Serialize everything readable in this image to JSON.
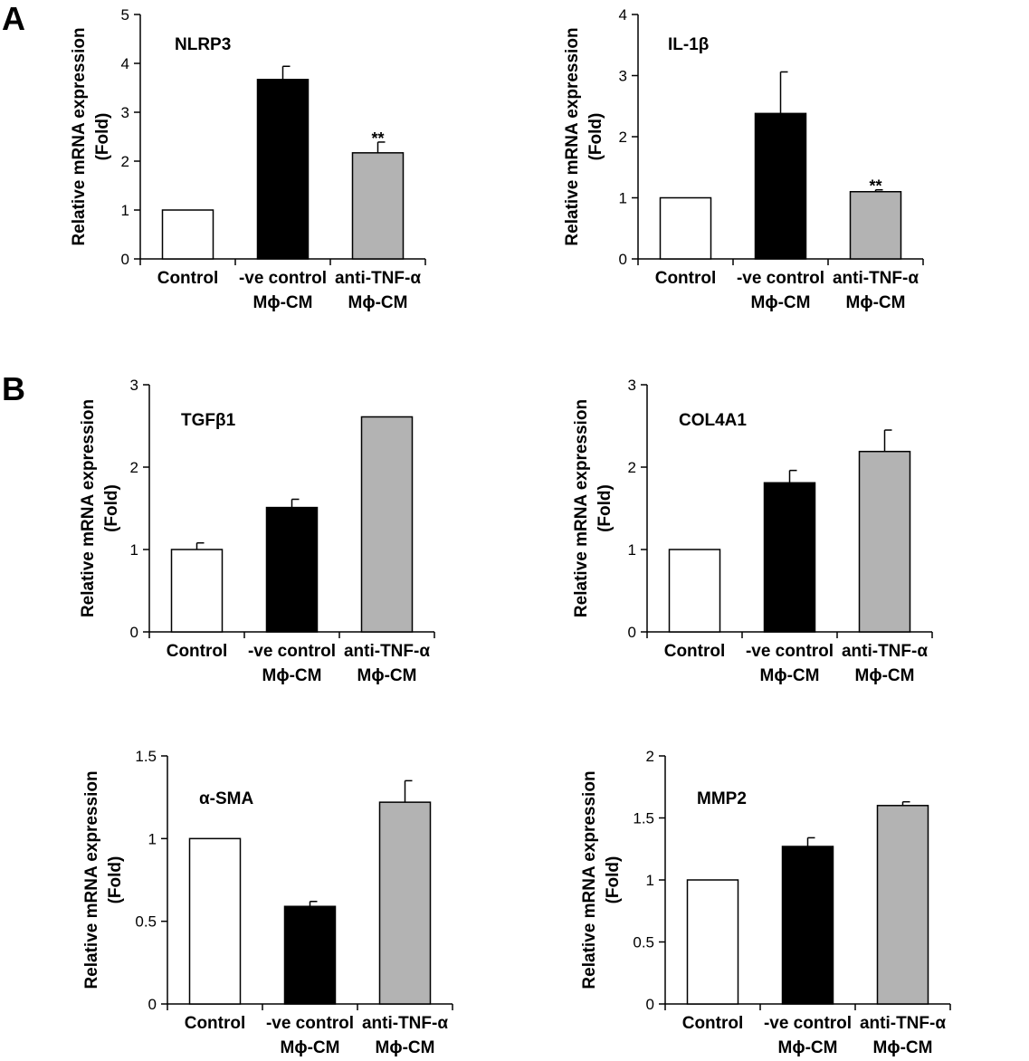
{
  "panel_labels": [
    "A",
    "B"
  ],
  "groups": [
    {
      "line1": "Control",
      "line2": ""
    },
    {
      "line1": "-ve control",
      "line2": "Mϕ-CM"
    },
    {
      "line1": "anti-TNF-α",
      "line2": "Mϕ-CM"
    }
  ],
  "colors": {
    "control": "#ffffff",
    "neg_control": "#000000",
    "anti_tnf": "#b3b3b3",
    "axis": "#000000"
  },
  "chart_data": [
    {
      "type": "bar",
      "panel": "A",
      "title": "NLRP3",
      "ylabel": "Relative mRNA expression",
      "ylabel2": "(Fold)",
      "ylim": [
        0,
        5
      ],
      "yticks": [
        0,
        1,
        2,
        3,
        4,
        5
      ],
      "ytick_labels": [
        "0",
        "1",
        "2",
        "3",
        "4",
        "5"
      ],
      "categories": [
        "Control",
        "-ve control Mϕ-CM",
        "anti-TNF-α Mϕ-CM"
      ],
      "values": [
        1,
        3.67,
        2.17
      ],
      "errors": [
        0,
        0.27,
        0.22
      ],
      "annotations": [
        "",
        "",
        "**"
      ]
    },
    {
      "type": "bar",
      "panel": "A",
      "title": "IL-1β",
      "ylabel": "Relative mRNA expression",
      "ylabel2": "(Fold)",
      "ylim": [
        0,
        4
      ],
      "yticks": [
        0,
        1,
        2,
        3,
        4
      ],
      "ytick_labels": [
        "0",
        "1",
        "2",
        "3",
        "4"
      ],
      "categories": [
        "Control",
        "-ve control Mϕ-CM",
        "anti-TNF-α Mϕ-CM"
      ],
      "values": [
        1,
        2.38,
        1.1
      ],
      "errors": [
        0,
        0.68,
        0.03
      ],
      "annotations": [
        "",
        "",
        "**"
      ]
    },
    {
      "type": "bar",
      "panel": "B",
      "title": "TGFβ1",
      "ylabel": "Relative mRNA expression",
      "ylabel2": "(Fold)",
      "ylim": [
        0,
        3
      ],
      "yticks": [
        0,
        1,
        2,
        3
      ],
      "ytick_labels": [
        "0",
        "1",
        "2",
        "3"
      ],
      "categories": [
        "Control",
        "-ve control Mϕ-CM",
        "anti-TNF-α Mϕ-CM"
      ],
      "values": [
        1,
        1.51,
        2.61
      ],
      "errors": [
        0.08,
        0.1,
        0
      ],
      "annotations": [
        "",
        "",
        ""
      ]
    },
    {
      "type": "bar",
      "panel": "B",
      "title": "COL4A1",
      "ylabel": "Relative mRNA expression",
      "ylabel2": "(Fold)",
      "ylim": [
        0,
        3
      ],
      "yticks": [
        0,
        1,
        2,
        3
      ],
      "ytick_labels": [
        "0",
        "1",
        "2",
        "3"
      ],
      "categories": [
        "Control",
        "-ve control Mϕ-CM",
        "anti-TNF-α Mϕ-CM"
      ],
      "values": [
        1,
        1.81,
        2.19
      ],
      "errors": [
        0,
        0.15,
        0.26
      ],
      "annotations": [
        "",
        "",
        ""
      ]
    },
    {
      "type": "bar",
      "panel": "B",
      "title": "α-SMA",
      "ylabel": "Relative mRNA expression",
      "ylabel2": "(Fold)",
      "ylim": [
        0,
        1.5
      ],
      "yticks": [
        0,
        0.5,
        1,
        1.5
      ],
      "ytick_labels": [
        "0",
        "0.5",
        "1",
        "1.5"
      ],
      "categories": [
        "Control",
        "-ve control Mϕ-CM",
        "anti-TNF-α Mϕ-CM"
      ],
      "values": [
        1,
        0.59,
        1.22
      ],
      "errors": [
        0,
        0.03,
        0.13
      ],
      "annotations": [
        "",
        "",
        ""
      ]
    },
    {
      "type": "bar",
      "panel": "B",
      "title": "MMP2",
      "ylabel": "Relative mRNA expression",
      "ylabel2": "(Fold)",
      "ylim": [
        0,
        2
      ],
      "yticks": [
        0,
        0.5,
        1,
        1.5,
        2
      ],
      "ytick_labels": [
        "0",
        "0.5",
        "1",
        "1.5",
        "2"
      ],
      "categories": [
        "Control",
        "-ve control Mϕ-CM",
        "anti-TNF-α Mϕ-CM"
      ],
      "values": [
        1,
        1.27,
        1.6
      ],
      "errors": [
        0,
        0.07,
        0.03
      ],
      "annotations": [
        "",
        "",
        ""
      ]
    }
  ]
}
